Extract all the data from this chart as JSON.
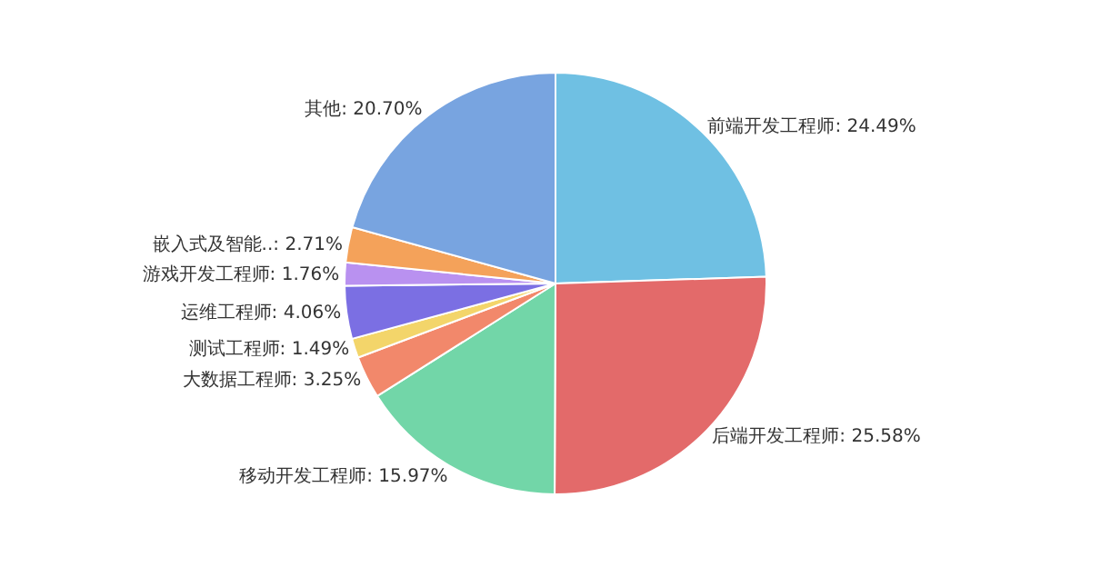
{
  "chart_data": {
    "type": "pie",
    "categories": [
      "前端开发工程师",
      "后端开发工程师",
      "移动开发工程师",
      "大数据工程师",
      "测试工程师",
      "运维工程师",
      "游戏开发工程师",
      "嵌入式及智能..",
      "其他"
    ],
    "values": [
      24.49,
      25.58,
      15.97,
      3.25,
      1.49,
      4.06,
      1.76,
      2.71,
      20.7
    ],
    "value_labels": [
      "24.49%",
      "25.58%",
      "15.97%",
      "3.25%",
      "1.49%",
      "4.06%",
      "1.76%",
      "2.71%",
      "20.70%"
    ],
    "colors": [
      "#6fc0e3",
      "#e36a6a",
      "#72d6a8",
      "#f2886b",
      "#f3d56a",
      "#7b6fe3",
      "#b991f0",
      "#f4a25a",
      "#78a4e0"
    ],
    "legend": false
  }
}
